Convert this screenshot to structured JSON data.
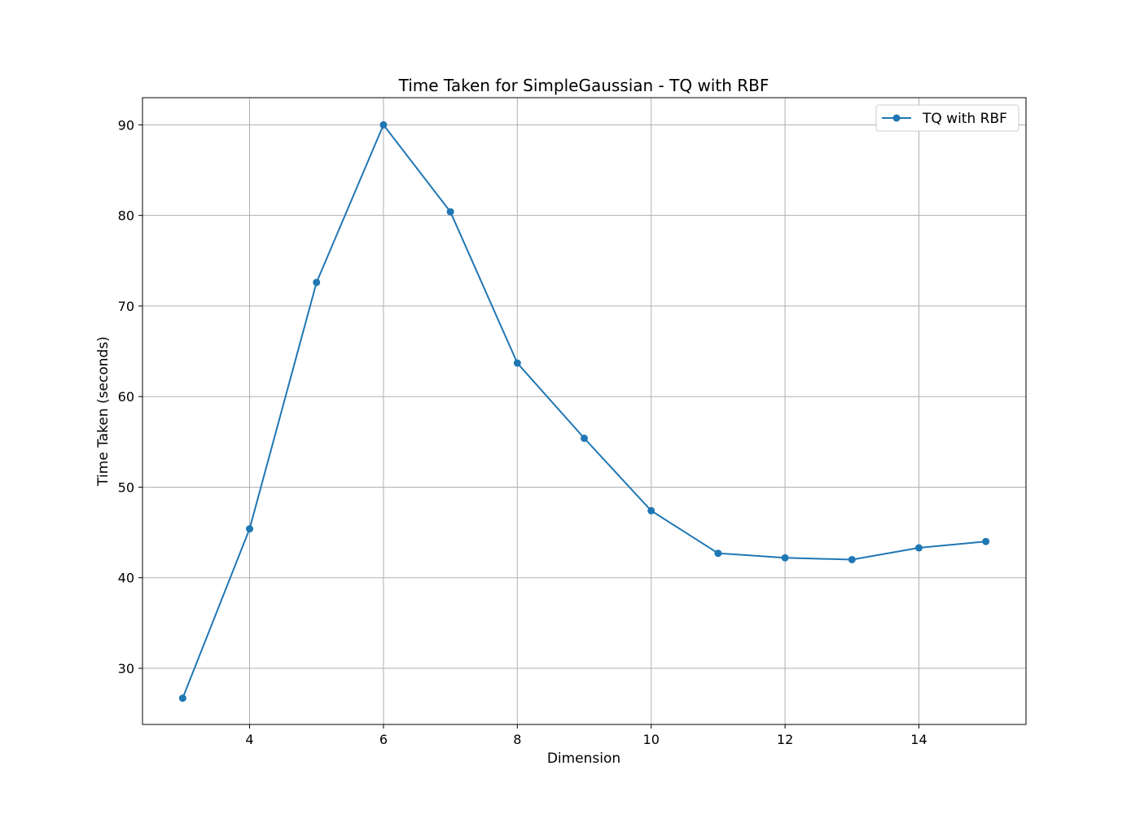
{
  "chart_data": {
    "type": "line",
    "title": "Time Taken for SimpleGaussian - TQ with RBF",
    "xlabel": "Dimension",
    "ylabel": "Time Taken (seconds)",
    "xlim": [
      2.4,
      15.6
    ],
    "ylim": [
      23.8,
      93.0
    ],
    "xticks": [
      4,
      6,
      8,
      10,
      12,
      14
    ],
    "yticks": [
      30,
      40,
      50,
      60,
      70,
      80,
      90
    ],
    "grid": true,
    "legend_position": "top-right",
    "series": [
      {
        "name": "TQ with RBF",
        "color": "#1f77b4",
        "marker": "circle",
        "x": [
          3,
          4,
          5,
          6,
          7,
          8,
          9,
          10,
          11,
          12,
          13,
          14,
          15
        ],
        "y": [
          26.7,
          45.4,
          72.6,
          90.0,
          80.4,
          63.7,
          55.4,
          47.4,
          42.7,
          42.2,
          42.0,
          43.3,
          44.0
        ]
      }
    ]
  }
}
